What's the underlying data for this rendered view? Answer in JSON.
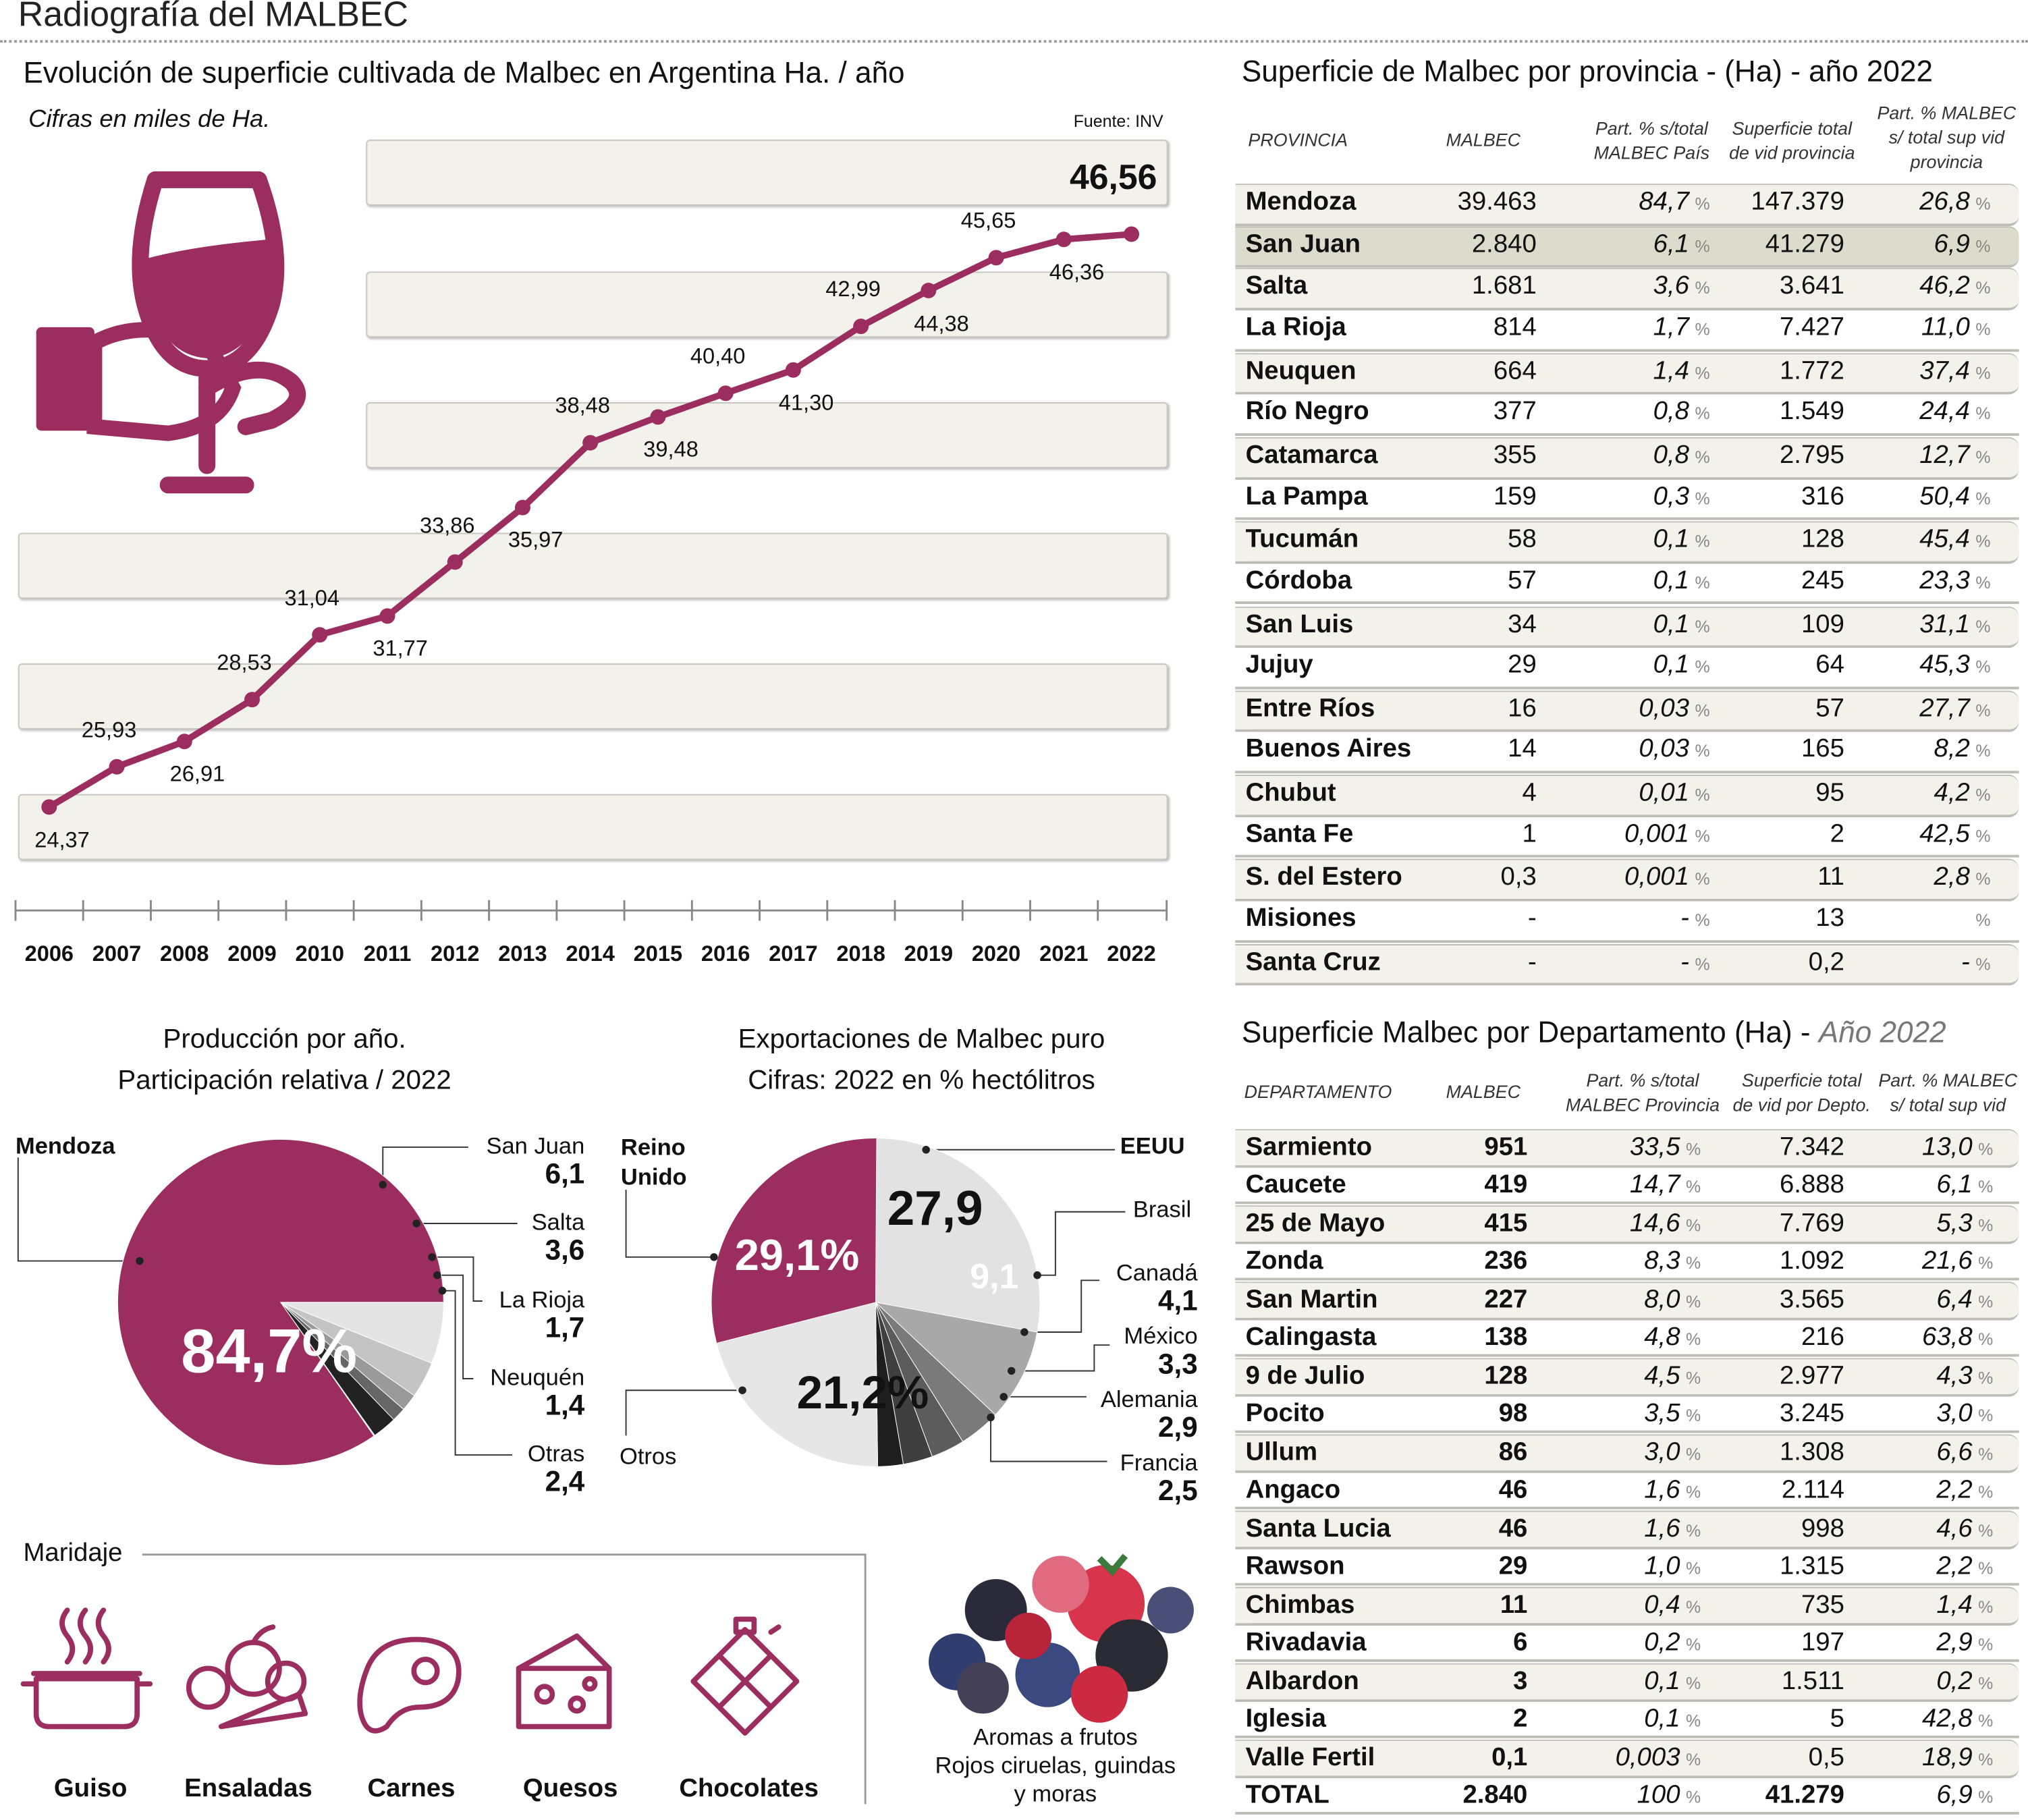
{
  "header": {
    "title": "Radiografía del MALBEC"
  },
  "colors": {
    "accent": "#9c2d5f",
    "band": "#f2f1ea",
    "highlight_row": "#dcdccc"
  },
  "line_section": {
    "title": "Evolución de superficie cultivada de Malbec en Argentina Ha. / año",
    "subtitle": "Cifras en miles de Ha.",
    "source": "Fuente: INV",
    "icon": "wine-glass-hand-icon"
  },
  "chart_data": [
    {
      "type": "line",
      "title": "Evolución de superficie cultivada de Malbec en Argentina Ha. / año",
      "subtitle": "Cifras en miles de Ha.",
      "x": [
        "2006",
        "2007",
        "2008",
        "2009",
        "2010",
        "2011",
        "2012",
        "2013",
        "2014",
        "2015",
        "2016",
        "2017",
        "2018",
        "2019",
        "2020",
        "2021",
        "2022"
      ],
      "y": [
        24.37,
        25.93,
        26.91,
        28.53,
        31.04,
        31.77,
        33.86,
        35.97,
        38.48,
        39.48,
        40.4,
        41.3,
        42.99,
        44.38,
        45.65,
        46.36,
        46.56
      ],
      "labels": [
        "24,37",
        "25,93",
        "26,91",
        "28,53",
        "31,04",
        "31,77",
        "33,86",
        "35,97",
        "38,48",
        "39,48",
        "40,40",
        "41,30",
        "42,99",
        "44,38",
        "45,65",
        "46,36",
        "46,56"
      ],
      "grid": "horizontal bands"
    },
    {
      "type": "pie",
      "title": "Producción por año.",
      "subtitle": "Participación relativa / 2022",
      "slices": [
        {
          "name": "Mendoza",
          "value": 84.7,
          "label": "84,7%",
          "color": "#9c2d5f"
        },
        {
          "name": "San Juan",
          "value": 6.1,
          "label": "6,1",
          "color": "#e4e4e4"
        },
        {
          "name": "Salta",
          "value": 3.6,
          "label": "3,6",
          "color": "#c4c4c4"
        },
        {
          "name": "La Rioja",
          "value": 1.7,
          "label": "1,7",
          "color": "#9a9a9a"
        },
        {
          "name": "Neuquén",
          "value": 1.4,
          "label": "1,4",
          "color": "#666666"
        },
        {
          "name": "Otras",
          "value": 2.4,
          "label": "2,4",
          "color": "#222222"
        }
      ]
    },
    {
      "type": "pie",
      "title": "Exportaciones de Malbec puro",
      "subtitle": "Cifras: 2022 en % hectólitros",
      "slices": [
        {
          "name": "EEUU",
          "value": 27.9,
          "label": "27,9",
          "color": "#e2e2e2"
        },
        {
          "name": "Brasil",
          "value": 9.1,
          "label": "9,1",
          "color": "#a8a8a8"
        },
        {
          "name": "Canadá",
          "value": 4.1,
          "label": "4,1",
          "color": "#7a7a7a"
        },
        {
          "name": "México",
          "value": 3.3,
          "label": "3,3",
          "color": "#5c5c5c"
        },
        {
          "name": "Alemania",
          "value": 2.9,
          "label": "2,9",
          "color": "#3f3f3f"
        },
        {
          "name": "Francia",
          "value": 2.5,
          "label": "2,5",
          "color": "#1e1e1e"
        },
        {
          "name": "Otros",
          "value": 21.2,
          "label": "21,2%",
          "color": "#e6e6e6"
        },
        {
          "name": "Reino Unido",
          "value": 29.1,
          "label": "29,1%",
          "color": "#9c2d5f"
        }
      ]
    }
  ],
  "prov_table": {
    "title": "Superficie de Malbec por provincia - (Ha) - año 2022",
    "headers": [
      "PROVINCIA",
      "MALBEC",
      "Part. % s/total MALBEC País",
      "Superficie  total de vid provincia",
      "Part. % MALBEC s/ total sup vid provincia"
    ],
    "rows": [
      [
        "Mendoza",
        "39.463",
        "84,7",
        "147.379",
        "26,8"
      ],
      [
        "San Juan",
        "2.840",
        "6,1",
        "41.279",
        "6,9"
      ],
      [
        "Salta",
        "1.681",
        "3,6",
        "3.641",
        "46,2"
      ],
      [
        "La Rioja",
        "814",
        "1,7",
        "7.427",
        "11,0"
      ],
      [
        "Neuquen",
        "664",
        "1,4",
        "1.772",
        "37,4"
      ],
      [
        "Río Negro",
        "377",
        "0,8",
        "1.549",
        "24,4"
      ],
      [
        "Catamarca",
        "355",
        "0,8",
        "2.795",
        "12,7"
      ],
      [
        "La Pampa",
        "159",
        "0,3",
        "316",
        "50,4"
      ],
      [
        "Tucumán",
        "58",
        "0,1",
        "128",
        "45,4"
      ],
      [
        "Córdoba",
        "57",
        "0,1",
        "245",
        "23,3"
      ],
      [
        "San Luis",
        "34",
        "0,1",
        "109",
        "31,1"
      ],
      [
        "Jujuy",
        "29",
        "0,1",
        "64",
        "45,3"
      ],
      [
        "Entre Ríos",
        "16",
        "0,03",
        "57",
        "27,7"
      ],
      [
        "Buenos Aires",
        "14",
        "0,03",
        "165",
        "8,2"
      ],
      [
        "Chubut",
        "4",
        "0,01",
        "95",
        "4,2"
      ],
      [
        "Santa Fe",
        "1",
        "0,001",
        "2",
        "42,5"
      ],
      [
        "S. del Estero",
        "0,3",
        "0,001",
        "11",
        "2,8"
      ],
      [
        "Misiones",
        "-",
        "-",
        "13",
        ""
      ],
      [
        "Santa Cruz",
        "-",
        "-",
        "0,2",
        "-"
      ]
    ]
  },
  "dep_table": {
    "title": "Superficie Malbec por Departamento (Ha) - ",
    "title_year": "Año 2022",
    "headers": [
      "DEPARTAMENTO",
      "MALBEC",
      "Part. % s/total MALBEC Provincia",
      "Superficie  total de vid por Depto.",
      "Part. % MALBEC s/ total sup vid"
    ],
    "rows": [
      [
        "Sarmiento",
        "951",
        "33,5",
        "7.342",
        "13,0"
      ],
      [
        "Caucete",
        "419",
        "14,7",
        "6.888",
        "6,1"
      ],
      [
        "25 de Mayo",
        "415",
        "14,6",
        "7.769",
        "5,3"
      ],
      [
        "Zonda",
        "236",
        "8,3",
        "1.092",
        "21,6"
      ],
      [
        "San Martin",
        "227",
        "8,0",
        "3.565",
        "6,4"
      ],
      [
        "Calingasta",
        "138",
        "4,8",
        "216",
        "63,8"
      ],
      [
        "9 de Julio",
        "128",
        "4,5",
        "2.977",
        "4,3"
      ],
      [
        "Pocito",
        "98",
        "3,5",
        "3.245",
        "3,0"
      ],
      [
        "Ullum",
        "86",
        "3,0",
        "1.308",
        "6,6"
      ],
      [
        "Angaco",
        "46",
        "1,6",
        "2.114",
        "2,2"
      ],
      [
        "Santa Lucia",
        "46",
        "1,6",
        "998",
        "4,6"
      ],
      [
        "Rawson",
        "29",
        "1,0",
        "1.315",
        "2,2"
      ],
      [
        "Chimbas",
        "11",
        "0,4",
        "735",
        "1,4"
      ],
      [
        "Rivadavia",
        "6",
        "0,2",
        "197",
        "2,9"
      ],
      [
        "Albardon",
        "3",
        "0,1",
        "1.511",
        "0,2"
      ],
      [
        "Iglesia",
        "2",
        "0,1",
        "5",
        "42,8"
      ],
      [
        "Valle Fertil",
        "0,1",
        "0,003",
        "0,5",
        "18,9"
      ],
      [
        "TOTAL",
        "2.840",
        "100",
        "41.279",
        "6,9"
      ]
    ]
  },
  "pct_sign": "%",
  "maridaje": {
    "title": "Maridaje",
    "items": [
      {
        "label": "Guiso",
        "icon": "pot-icon"
      },
      {
        "label": "Ensaladas",
        "icon": "vegetables-icon"
      },
      {
        "label": "Carnes",
        "icon": "steak-icon"
      },
      {
        "label": "Quesos",
        "icon": "cheese-icon"
      },
      {
        "label": "Chocolates",
        "icon": "chocolate-icon"
      }
    ]
  },
  "aromas": {
    "caption_1": "Aromas a frutos",
    "caption_2": "Rojos ciruelas, guindas",
    "caption_3": "y moras",
    "image": "berries-photo"
  }
}
